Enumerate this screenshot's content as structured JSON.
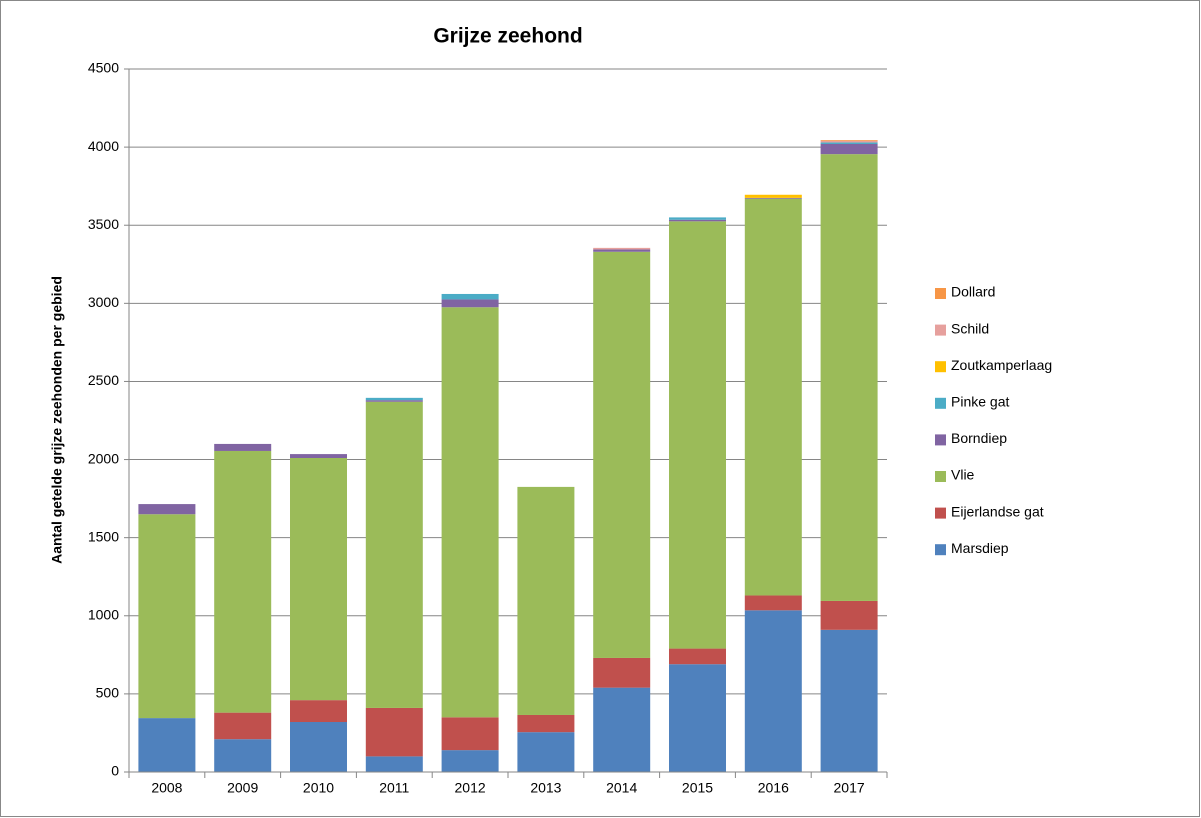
{
  "chart_data": {
    "type": "bar",
    "stacked": true,
    "title": "Grijze zeehond",
    "y_label": "Aantal getelde grijze zeehonden per gebied",
    "categories": [
      "2008",
      "2009",
      "2010",
      "2011",
      "2012",
      "2013",
      "2014",
      "2015",
      "2016",
      "2017"
    ],
    "series": [
      {
        "name": "Marsdiep",
        "color": "#4f81bd",
        "values": [
          345,
          210,
          320,
          100,
          140,
          255,
          540,
          690,
          1035,
          910
        ]
      },
      {
        "name": "Eijerlandse gat",
        "color": "#c0504d",
        "values": [
          0,
          170,
          140,
          310,
          210,
          110,
          190,
          100,
          95,
          185
        ]
      },
      {
        "name": "Vlie",
        "color": "#9bbb59",
        "values": [
          1305,
          1675,
          1550,
          1960,
          2625,
          1460,
          2600,
          2735,
          2540,
          2860
        ]
      },
      {
        "name": "Borndiep",
        "color": "#8064a2",
        "values": [
          65,
          45,
          25,
          10,
          50,
          0,
          15,
          10,
          5,
          65
        ]
      },
      {
        "name": "Pinke gat",
        "color": "#4bacc6",
        "values": [
          0,
          0,
          0,
          15,
          35,
          0,
          0,
          15,
          0,
          10
        ]
      },
      {
        "name": "Zoutkamperlaag",
        "color": "#ffc000",
        "values": [
          0,
          0,
          0,
          0,
          0,
          0,
          0,
          0,
          20,
          0
        ]
      },
      {
        "name": "Schild",
        "color": "#e6a09d",
        "values": [
          0,
          0,
          0,
          0,
          0,
          0,
          10,
          0,
          0,
          10
        ]
      },
      {
        "name": "Dollard",
        "color": "#f79646",
        "values": [
          0,
          0,
          0,
          0,
          0,
          0,
          0,
          0,
          0,
          5
        ]
      }
    ],
    "ylim": [
      0,
      4500
    ],
    "yticks": [
      0,
      500,
      1000,
      1500,
      2000,
      2500,
      3000,
      3500,
      4000,
      4500
    ],
    "grid": true,
    "legend": "right"
  }
}
